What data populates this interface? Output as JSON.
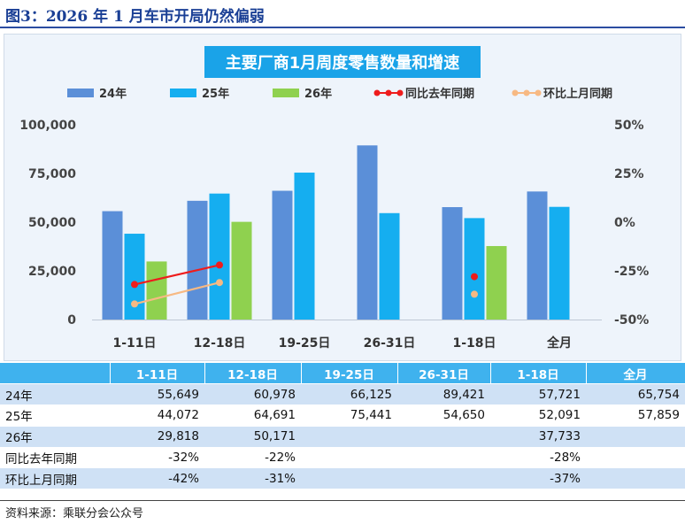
{
  "figure_title": "图3：2026 年 1 月车市开局仍然偏弱",
  "source": "资料来源：乘联分会公众号",
  "colors": {
    "s24": "#5b8fd8",
    "s25": "#15aef0",
    "s26": "#8fd14f",
    "yoy": "#ee1c1c",
    "mom": "#f7b983",
    "banner": "#1aa3e8"
  },
  "chart_data": {
    "type": "bar",
    "title": "主要厂商1月周度零售数量和增速",
    "categories": [
      "1-11日",
      "12-18日",
      "19-25日",
      "26-31日",
      "1-18日",
      "全月"
    ],
    "series": [
      {
        "name": "24年",
        "type": "bar",
        "axis": "left",
        "values": [
          55649,
          60978,
          66125,
          89421,
          57721,
          65754
        ]
      },
      {
        "name": "25年",
        "type": "bar",
        "axis": "left",
        "values": [
          44072,
          64691,
          75441,
          54650,
          52091,
          57859
        ]
      },
      {
        "name": "26年",
        "type": "bar",
        "axis": "left",
        "values": [
          29818,
          50171,
          null,
          null,
          37733,
          null
        ]
      },
      {
        "name": "同比去年同期",
        "type": "line",
        "axis": "right",
        "values": [
          -32,
          -22,
          null,
          null,
          -28,
          null
        ]
      },
      {
        "name": "环比上月同期",
        "type": "line",
        "axis": "right",
        "values": [
          -42,
          -31,
          null,
          null,
          -37,
          null
        ]
      }
    ],
    "y_left": {
      "min": 0,
      "max": 100000,
      "ticks": [
        "0",
        "25,000",
        "50,000",
        "75,000",
        "100,000"
      ]
    },
    "y_right": {
      "min": -50,
      "max": 50,
      "ticks": [
        "-50%",
        "-25%",
        "0%",
        "25%",
        "50%"
      ]
    },
    "legend_position": "top",
    "grid": false
  },
  "table": {
    "headers": [
      "",
      "1-11日",
      "12-18日",
      "19-25日",
      "26-31日",
      "1-18日",
      "全月"
    ],
    "rows": [
      {
        "label": "24年",
        "cells": [
          "55,649",
          "60,978",
          "66,125",
          "89,421",
          "57,721",
          "65,754"
        ]
      },
      {
        "label": "25年",
        "cells": [
          "44,072",
          "64,691",
          "75,441",
          "54,650",
          "52,091",
          "57,859"
        ]
      },
      {
        "label": "26年",
        "cells": [
          "29,818",
          "50,171",
          "",
          "",
          "37,733",
          ""
        ]
      },
      {
        "label": "同比去年同期",
        "cells": [
          "-32%",
          "-22%",
          "",
          "",
          "-28%",
          ""
        ]
      },
      {
        "label": "环比上月同期",
        "cells": [
          "-42%",
          "-31%",
          "",
          "",
          "-37%",
          ""
        ]
      }
    ]
  }
}
